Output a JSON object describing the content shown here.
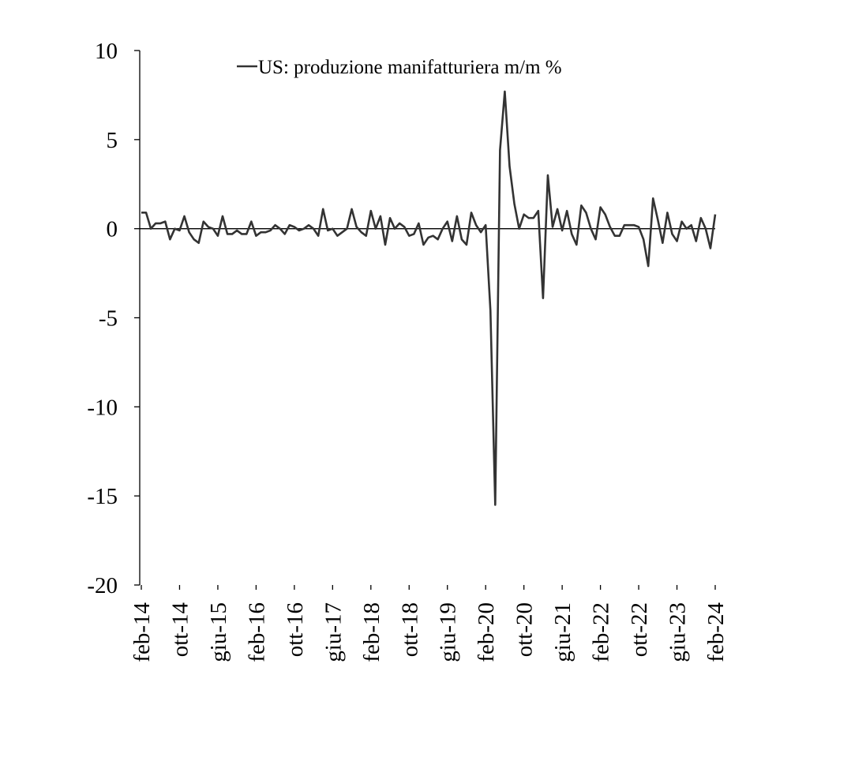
{
  "chart_data": {
    "type": "line",
    "title": "",
    "xlabel": "",
    "ylabel": "",
    "ylim": [
      -20,
      10
    ],
    "yticks": [
      10,
      5,
      0,
      -5,
      -10,
      -15,
      -20
    ],
    "ytick_labels": [
      "10",
      "5",
      "0",
      "-5",
      "-10",
      "-15",
      "-20"
    ],
    "xticks": [
      {
        "label": "feb-14",
        "index": 0
      },
      {
        "label": "ott-14",
        "index": 8
      },
      {
        "label": "giu-15",
        "index": 16
      },
      {
        "label": "feb-16",
        "index": 24
      },
      {
        "label": "ott-16",
        "index": 32
      },
      {
        "label": "giu-17",
        "index": 40
      },
      {
        "label": "feb-18",
        "index": 48
      },
      {
        "label": "ott-18",
        "index": 56
      },
      {
        "label": "giu-19",
        "index": 64
      },
      {
        "label": "feb-20",
        "index": 72
      },
      {
        "label": "ott-20",
        "index": 80
      },
      {
        "label": "giu-21",
        "index": 88
      },
      {
        "label": "feb-22",
        "index": 96
      },
      {
        "label": "ott-22",
        "index": 104
      },
      {
        "label": "giu-23",
        "index": 112
      },
      {
        "label": "feb-24",
        "index": 120
      }
    ],
    "grid": false,
    "legend_position": "top",
    "series": [
      {
        "name": "US: produzione manifatturiera m/m %",
        "color": "#333333",
        "values": [
          0.9,
          0.9,
          0.0,
          0.3,
          0.3,
          0.4,
          -0.6,
          0.0,
          -0.1,
          0.7,
          -0.2,
          -0.6,
          -0.8,
          0.4,
          0.1,
          0.0,
          -0.4,
          0.7,
          -0.3,
          -0.3,
          -0.1,
          -0.3,
          -0.3,
          0.4,
          -0.4,
          -0.2,
          -0.2,
          -0.1,
          0.2,
          0.0,
          -0.3,
          0.2,
          0.1,
          -0.1,
          0.0,
          0.2,
          0.0,
          -0.4,
          1.1,
          -0.1,
          0.0,
          -0.4,
          -0.2,
          0.0,
          1.1,
          0.1,
          -0.2,
          -0.4,
          1.0,
          0.0,
          0.7,
          -0.9,
          0.6,
          0.0,
          0.3,
          0.1,
          -0.4,
          -0.3,
          0.3,
          -0.9,
          -0.5,
          -0.4,
          -0.6,
          0.0,
          0.4,
          -0.7,
          0.7,
          -0.6,
          -0.9,
          0.9,
          0.2,
          -0.2,
          0.2,
          -4.6,
          -15.5,
          4.4,
          7.7,
          3.5,
          1.4,
          0.0,
          0.8,
          0.6,
          0.6,
          1.0,
          -3.9,
          3.0,
          0.1,
          1.1,
          -0.1,
          1.0,
          -0.3,
          -0.9,
          1.3,
          0.9,
          0.0,
          -0.6,
          1.2,
          0.8,
          0.1,
          -0.4,
          -0.4,
          0.2,
          0.2,
          0.2,
          0.1,
          -0.6,
          -2.1,
          1.7,
          0.5,
          -0.8,
          0.9,
          -0.3,
          -0.7,
          0.4,
          0.0,
          0.2,
          -0.7,
          0.6,
          0.0,
          -1.1,
          0.8
        ]
      }
    ]
  }
}
